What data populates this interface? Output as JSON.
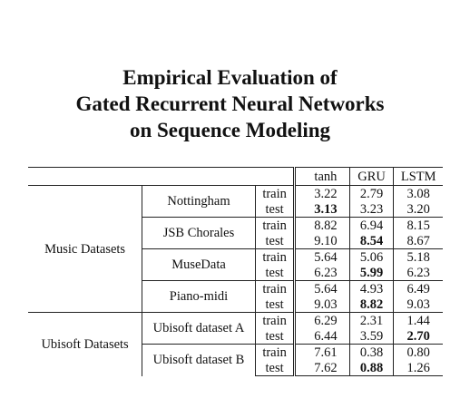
{
  "title": {
    "line1": "Empirical Evaluation of",
    "line2": "Gated Recurrent Neural Networks",
    "line3": "on Sequence Modeling"
  },
  "table": {
    "columns": [
      "tanh",
      "GRU",
      "LSTM"
    ],
    "groups": [
      {
        "label": "Music Datasets",
        "datasets": [
          {
            "name": "Nottingham",
            "rows": [
              {
                "split": "train",
                "tanh": "3.22",
                "gru": "2.79",
                "lstm": "3.08",
                "bold": ""
              },
              {
                "split": "test",
                "tanh": "3.13",
                "gru": "3.23",
                "lstm": "3.20",
                "bold": "tanh"
              }
            ]
          },
          {
            "name": "JSB Chorales",
            "rows": [
              {
                "split": "train",
                "tanh": "8.82",
                "gru": "6.94",
                "lstm": "8.15",
                "bold": ""
              },
              {
                "split": "test",
                "tanh": "9.10",
                "gru": "8.54",
                "lstm": "8.67",
                "bold": "gru"
              }
            ]
          },
          {
            "name": "MuseData",
            "rows": [
              {
                "split": "train",
                "tanh": "5.64",
                "gru": "5.06",
                "lstm": "5.18",
                "bold": ""
              },
              {
                "split": "test",
                "tanh": "6.23",
                "gru": "5.99",
                "lstm": "6.23",
                "bold": "gru"
              }
            ]
          },
          {
            "name": "Piano-midi",
            "rows": [
              {
                "split": "train",
                "tanh": "5.64",
                "gru": "4.93",
                "lstm": "6.49",
                "bold": ""
              },
              {
                "split": "test",
                "tanh": "9.03",
                "gru": "8.82",
                "lstm": "9.03",
                "bold": "gru"
              }
            ]
          }
        ]
      },
      {
        "label": "Ubisoft Datasets",
        "datasets": [
          {
            "name": "Ubisoft dataset A",
            "rows": [
              {
                "split": "train",
                "tanh": "6.29",
                "gru": "2.31",
                "lstm": "1.44",
                "bold": ""
              },
              {
                "split": "test",
                "tanh": "6.44",
                "gru": "3.59",
                "lstm": "2.70",
                "bold": "lstm"
              }
            ]
          },
          {
            "name": "Ubisoft dataset B",
            "rows": [
              {
                "split": "train",
                "tanh": "7.61",
                "gru": "0.38",
                "lstm": "0.80",
                "bold": ""
              },
              {
                "split": "test",
                "tanh": "7.62",
                "gru": "0.88",
                "lstm": "1.26",
                "bold": "gru"
              }
            ]
          }
        ]
      }
    ]
  }
}
